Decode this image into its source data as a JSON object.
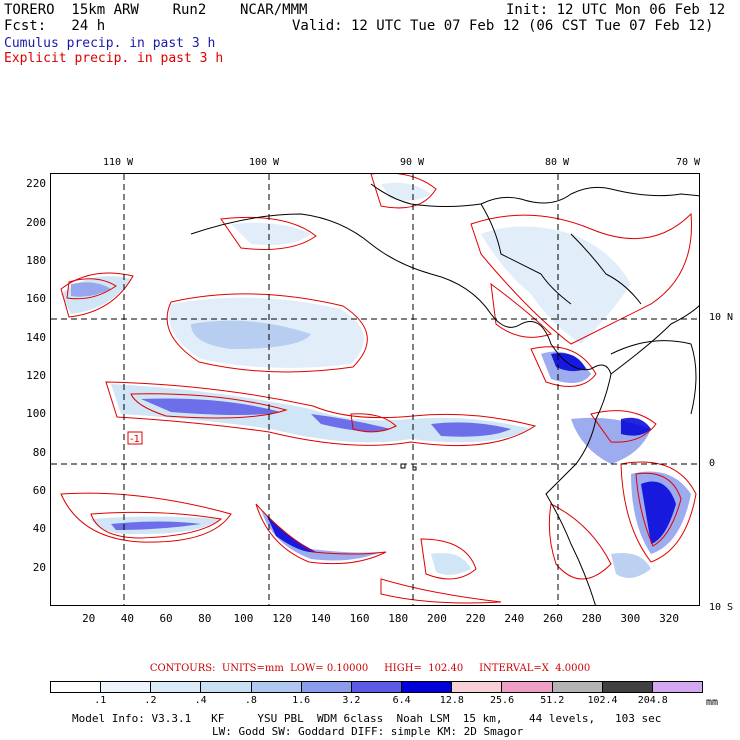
{
  "header": {
    "model": "TORERO  15km ARW    Run2    NCAR/MMM",
    "init": "Init: 12 UTC Mon 06 Feb 12",
    "fcst": "Fcst:   24 h",
    "valid": "Valid: 12 UTC Tue 07 Feb 12 (06 CST Tue 07 Feb 12)",
    "legend_cumulus": "Cumulus precip. in past 3 h",
    "legend_explicit": "Explicit precip. in past 3 h"
  },
  "axes": {
    "y_ticks": [
      "220",
      "200",
      "180",
      "160",
      "140",
      "120",
      "100",
      "80",
      "60",
      "40",
      "20"
    ],
    "x_ticks": [
      "20",
      "40",
      "60",
      "80",
      "100",
      "120",
      "140",
      "160",
      "180",
      "200",
      "220",
      "240",
      "260",
      "280",
      "300",
      "320"
    ],
    "lon_labels": [
      "110 W",
      "100 W",
      "90 W",
      "80 W",
      "70 W"
    ],
    "lat_labels": [
      "10 N",
      "0",
      "10 S"
    ]
  },
  "map_annotation": "-1",
  "contours": {
    "text": "CONTOURS:  UNITS=mm  LOW= 0.10000     HIGH=  102.40     INTERVAL=X  4.0000"
  },
  "colorbar": {
    "labels": [
      ".1",
      ".2",
      ".4",
      ".8",
      "1.6",
      "3.2",
      "6.4",
      "12.8",
      "25.6",
      "51.2",
      "102.4",
      "204.8"
    ],
    "colors": [
      "#ffffff",
      "#eef4fc",
      "#dcebf8",
      "#c8e0f4",
      "#b0c8f0",
      "#8c9cec",
      "#5a5ae6",
      "#0000d8",
      "#f8d0d8",
      "#f0a0c4",
      "#b4b4b4",
      "#404040",
      "#d4a8f0"
    ],
    "units": "mm"
  },
  "model_info": {
    "line1": "Model Info: V3.3.1   KF     YSU PBL  WDM 6class  Noah LSM  15 km,    44 levels,   103 sec",
    "line2": "LW: Godd SW: Goddard DIFF: simple KM: 2D Smagor"
  }
}
